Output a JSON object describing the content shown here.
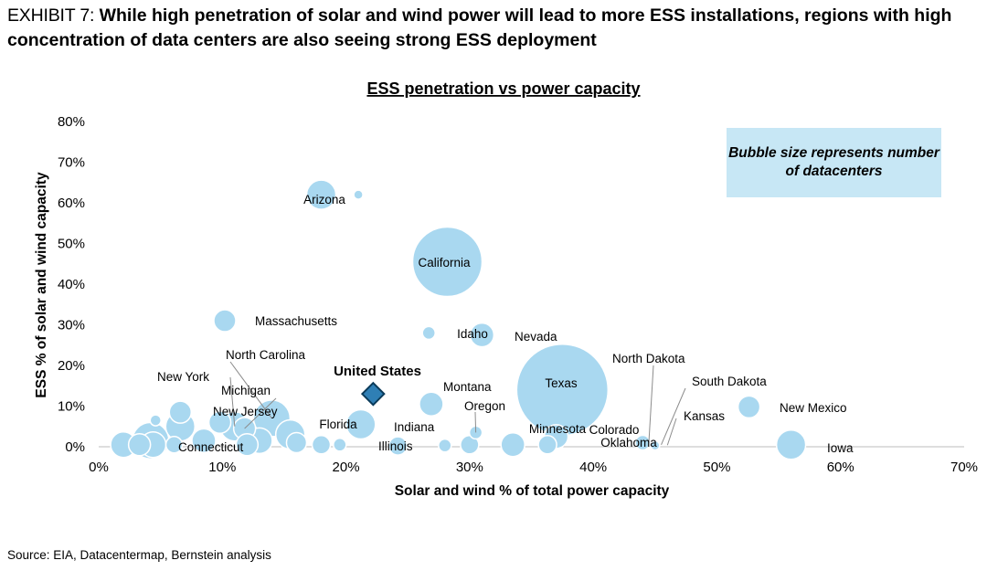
{
  "exhibit": {
    "prefix": "EXHIBIT 7:",
    "headline": "While high penetration of solar and wind power will lead to more ESS installations, regions with high concentration of data centers are also seeing strong ESS deployment"
  },
  "source": "Source: EIA, Datacentermap, Bernstein analysis",
  "colors": {
    "bubble_fill": "#a9d8f0",
    "bubble_stroke": "#ffffff",
    "us_marker": "#2f7fb5",
    "us_marker_stroke": "#0b3b5a",
    "legend_bg": "#c7e7f5"
  },
  "chart_data": {
    "type": "scatter",
    "title": "ESS penetration vs power capacity",
    "xlabel": "Solar and wind % of total power capacity",
    "ylabel": "ESS % of solar and wind capacity",
    "xlim": [
      0,
      70
    ],
    "ylim": [
      0,
      80
    ],
    "xticks": [
      0,
      10,
      20,
      30,
      40,
      50,
      60,
      70
    ],
    "yticks": [
      0,
      10,
      20,
      30,
      40,
      50,
      60,
      70,
      80
    ],
    "xtick_labels": [
      "0%",
      "10%",
      "20%",
      "30%",
      "40%",
      "50%",
      "60%",
      "70%"
    ],
    "ytick_labels": [
      "0%",
      "10%",
      "20%",
      "30%",
      "40%",
      "50%",
      "60%",
      "70%",
      "80%"
    ],
    "legend_note": "Bubble size represents number of datacenters",
    "points": [
      {
        "name": "Arizona",
        "x": 18.0,
        "y": 62.0,
        "size": 16,
        "label": "Arizona"
      },
      {
        "name": "unlabeled-1",
        "x": 21.0,
        "y": 62.0,
        "size": 5,
        "label": ""
      },
      {
        "name": "California",
        "x": 28.2,
        "y": 45.5,
        "size": 38,
        "label": "California"
      },
      {
        "name": "Massachusetts",
        "x": 10.2,
        "y": 31.0,
        "size": 12,
        "label": "Massachusetts"
      },
      {
        "name": "unlabeled-2",
        "x": 26.7,
        "y": 28.0,
        "size": 7,
        "label": ""
      },
      {
        "name": "Idaho",
        "x": 31.0,
        "y": 27.5,
        "size": 13,
        "label": "Idaho"
      },
      {
        "name": "Nevada",
        "x": 35.5,
        "y": 27.5,
        "size": 0,
        "label": "Nevada"
      },
      {
        "name": "Texas",
        "x": 37.5,
        "y": 14.0,
        "size": 50,
        "label": "Texas"
      },
      {
        "name": "New Mexico",
        "x": 52.6,
        "y": 9.8,
        "size": 12,
        "label": "New Mexico"
      },
      {
        "name": "Iowa",
        "x": 56.0,
        "y": 0.5,
        "size": 16,
        "label": "Iowa"
      },
      {
        "name": "Montana",
        "x": 26.9,
        "y": 10.5,
        "size": 13,
        "label": "Montana"
      },
      {
        "name": "Oregon",
        "x": 30.5,
        "y": 3.5,
        "size": 7,
        "label": "Oregon"
      },
      {
        "name": "Indiana",
        "x": 28.0,
        "y": 0.3,
        "size": 7,
        "label": "Indiana"
      },
      {
        "name": "unlabeled-3",
        "x": 30.0,
        "y": 0.5,
        "size": 10,
        "label": ""
      },
      {
        "name": "Illinois",
        "x": 24.2,
        "y": 0.2,
        "size": 10,
        "label": "Illinois"
      },
      {
        "name": "Florida",
        "x": 21.2,
        "y": 5.5,
        "size": 16,
        "label": "Florida"
      },
      {
        "name": "Minnesota",
        "x": 37.0,
        "y": 2.5,
        "size": 13,
        "label": "Minnesota"
      },
      {
        "name": "unlabeled-4",
        "x": 33.5,
        "y": 0.5,
        "size": 13,
        "label": ""
      },
      {
        "name": "unlabeled-5",
        "x": 36.3,
        "y": 0.5,
        "size": 10,
        "label": ""
      },
      {
        "name": "Colorado",
        "x": 44.0,
        "y": 1.0,
        "size": 8,
        "label": "Colorado"
      },
      {
        "name": "Oklahoma",
        "x": 45.0,
        "y": 0.3,
        "size": 5,
        "label": "Oklahoma"
      },
      {
        "name": "North Dakota",
        "x": 44.5,
        "y": 1.2,
        "size": 0,
        "label": "North Dakota"
      },
      {
        "name": "South Dakota",
        "x": 45.5,
        "y": 0.5,
        "size": 0,
        "label": "South Dakota"
      },
      {
        "name": "Kansas",
        "x": 46.0,
        "y": 0.4,
        "size": 0,
        "label": "Kansas"
      },
      {
        "name": "New York",
        "x": 11.0,
        "y": 5.0,
        "size": 16,
        "label": "New York"
      },
      {
        "name": "North Carolina",
        "x": 14.0,
        "y": 7.0,
        "size": 20,
        "label": "North Carolina"
      },
      {
        "name": "Michigan",
        "x": 11.8,
        "y": 4.5,
        "size": 12,
        "label": "Michigan"
      },
      {
        "name": "New Jersey",
        "x": 15.5,
        "y": 3.0,
        "size": 16,
        "label": "New Jersey"
      },
      {
        "name": "Connecticut",
        "x": 12.0,
        "y": 0.5,
        "size": 12,
        "label": "Connecticut"
      },
      {
        "name": "unlabeled-6",
        "x": 6.6,
        "y": 8.5,
        "size": 12,
        "label": ""
      },
      {
        "name": "unlabeled-7",
        "x": 6.6,
        "y": 5.0,
        "size": 16,
        "label": ""
      },
      {
        "name": "unlabeled-8",
        "x": 9.8,
        "y": 6.0,
        "size": 12,
        "label": ""
      },
      {
        "name": "unlabeled-9",
        "x": 4.6,
        "y": 6.5,
        "size": 6,
        "label": ""
      },
      {
        "name": "unlabeled-10",
        "x": 4.2,
        "y": 1.5,
        "size": 20,
        "label": ""
      },
      {
        "name": "unlabeled-11",
        "x": 2.0,
        "y": 0.5,
        "size": 14,
        "label": ""
      },
      {
        "name": "unlabeled-12",
        "x": 3.3,
        "y": 0.5,
        "size": 12,
        "label": ""
      },
      {
        "name": "unlabeled-13",
        "x": 4.4,
        "y": 0.5,
        "size": 14,
        "label": ""
      },
      {
        "name": "unlabeled-14",
        "x": 6.1,
        "y": 0.5,
        "size": 9,
        "label": ""
      },
      {
        "name": "unlabeled-15",
        "x": 8.5,
        "y": 1.5,
        "size": 13,
        "label": ""
      },
      {
        "name": "unlabeled-16",
        "x": 13.0,
        "y": 1.5,
        "size": 14,
        "label": ""
      },
      {
        "name": "unlabeled-17",
        "x": 16.0,
        "y": 1.0,
        "size": 11,
        "label": ""
      },
      {
        "name": "unlabeled-18",
        "x": 18.0,
        "y": 0.5,
        "size": 10,
        "label": ""
      },
      {
        "name": "unlabeled-19",
        "x": 19.5,
        "y": 0.5,
        "size": 7,
        "label": ""
      }
    ],
    "united_states": {
      "name": "United States",
      "x": 22.2,
      "y": 13.0,
      "label": "United States"
    }
  }
}
